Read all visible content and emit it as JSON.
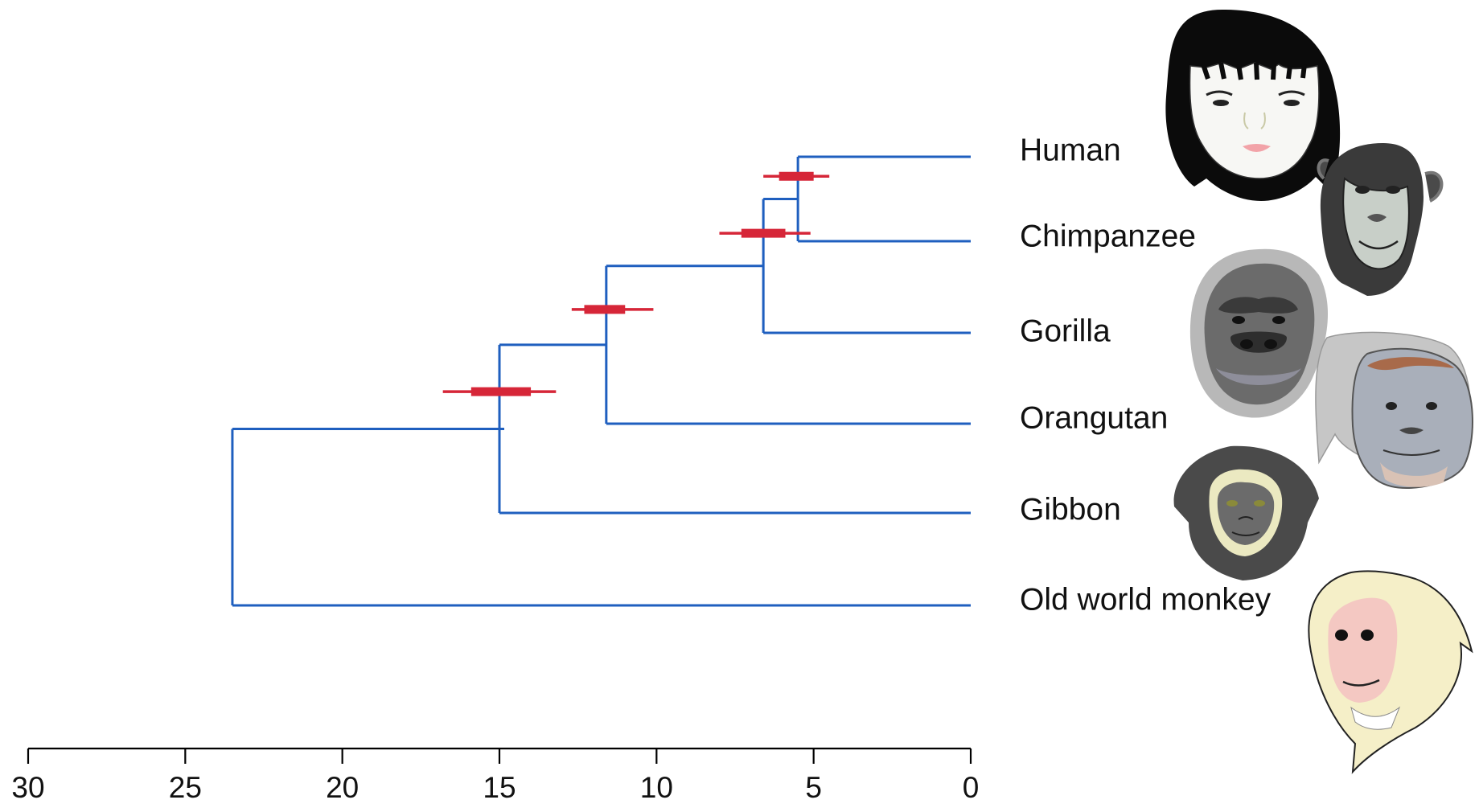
{
  "colors": {
    "branch": "#1f5fbf",
    "interval": "#d62638"
  },
  "taxa": [
    {
      "name": "Human",
      "portrait": "human-face-icon"
    },
    {
      "name": "Chimpanzee",
      "portrait": "chimpanzee-face-icon"
    },
    {
      "name": "Gorilla",
      "portrait": "gorilla-face-icon"
    },
    {
      "name": "Orangutan",
      "portrait": "orangutan-face-icon"
    },
    {
      "name": "Gibbon",
      "portrait": "gibbon-face-icon"
    },
    {
      "name": "Old world monkey",
      "portrait": "macaque-face-icon"
    }
  ],
  "nodes": [
    {
      "id": "human-chimp",
      "age": 5.5,
      "ci_inner": [
        5.0,
        6.1
      ],
      "ci_outer": [
        4.5,
        6.6
      ]
    },
    {
      "id": "gorilla",
      "age": 6.6,
      "ci_inner": [
        5.9,
        7.3
      ],
      "ci_outer": [
        5.1,
        8.0
      ]
    },
    {
      "id": "orangutan",
      "age": 11.6,
      "ci_inner": [
        11.0,
        12.3
      ],
      "ci_outer": [
        10.1,
        12.7
      ]
    },
    {
      "id": "gibbon",
      "age": 15.0,
      "ci_inner": [
        14.0,
        15.9
      ],
      "ci_outer": [
        13.2,
        16.8
      ]
    },
    {
      "id": "root",
      "age": 23.5
    }
  ],
  "axis": {
    "min": 0,
    "max": 30,
    "direction": "reversed",
    "ticks": [
      "30",
      "25",
      "20",
      "15",
      "10",
      "5",
      "0"
    ]
  }
}
